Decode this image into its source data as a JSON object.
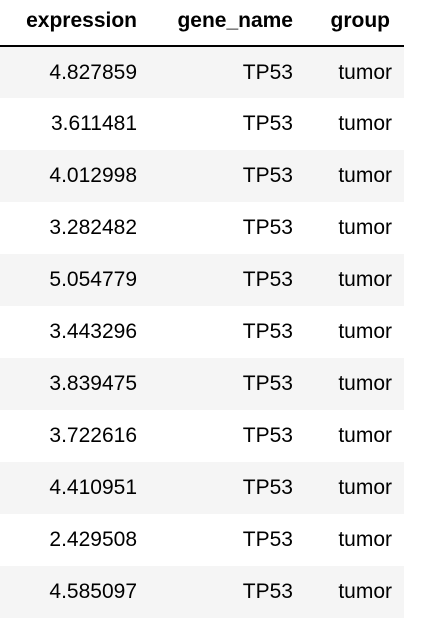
{
  "table": {
    "columns": [
      "expression",
      "gene_name",
      "group"
    ],
    "rows": [
      [
        "4.827859",
        "TP53",
        "tumor"
      ],
      [
        "3.611481",
        "TP53",
        "tumor"
      ],
      [
        "4.012998",
        "TP53",
        "tumor"
      ],
      [
        "3.282482",
        "TP53",
        "tumor"
      ],
      [
        "5.054779",
        "TP53",
        "tumor"
      ],
      [
        "3.443296",
        "TP53",
        "tumor"
      ],
      [
        "3.839475",
        "TP53",
        "tumor"
      ],
      [
        "3.722616",
        "TP53",
        "tumor"
      ],
      [
        "4.410951",
        "TP53",
        "tumor"
      ],
      [
        "2.429508",
        "TP53",
        "tumor"
      ],
      [
        "4.585097",
        "TP53",
        "tumor"
      ]
    ]
  },
  "colors": {
    "row_stripe": "#f5f5f5",
    "row_plain": "#ffffff",
    "header_rule": "#000000",
    "text": "#000000"
  }
}
